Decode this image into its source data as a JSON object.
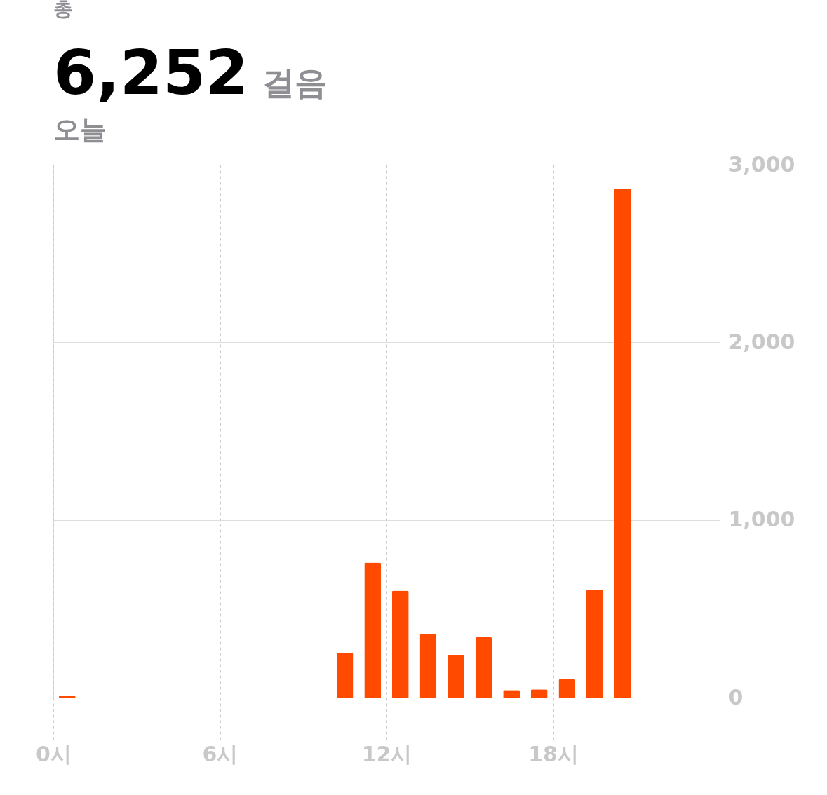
{
  "chart_data": {
    "type": "bar",
    "title": "6,252",
    "subtitle": "걸음",
    "annotations": [
      "총",
      "오늘"
    ],
    "x": [
      0.5,
      10.5,
      11.5,
      12.5,
      13.5,
      14.5,
      15.5,
      16.5,
      17.5,
      18.5,
      19.5,
      20.5
    ],
    "values": [
      8,
      254,
      760,
      602,
      359,
      239,
      339,
      42,
      46,
      104,
      609,
      2865
    ],
    "color": "#ff4a00",
    "xlim": [
      0,
      24
    ],
    "xticks": [
      {
        "value": 0,
        "label": "0시"
      },
      {
        "value": 6,
        "label": "6시"
      },
      {
        "value": 12,
        "label": "12시"
      },
      {
        "value": 18,
        "label": "18시"
      }
    ],
    "ylim": [
      0,
      3000
    ],
    "yticks": [
      0,
      {
        "value": 1000,
        "label": "1,000"
      },
      {
        "value": 2000,
        "label": "2,000"
      },
      {
        "value": 3000,
        "label": "3,000"
      }
    ],
    "grid": true
  }
}
